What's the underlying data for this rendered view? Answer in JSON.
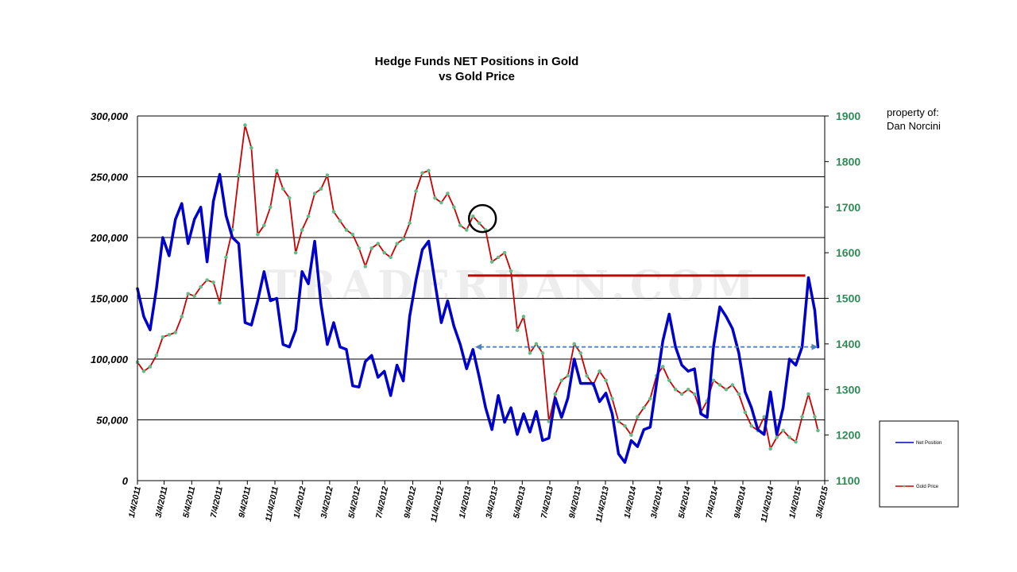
{
  "chart_data": {
    "type": "line",
    "title": "Hedge Funds NET Positions in Gold",
    "subtitle": "vs Gold Price",
    "credit": [
      "property of:",
      "Dan Norcini"
    ],
    "watermark": "TRADERDAN.COM",
    "ylim_left": [
      0,
      300000
    ],
    "ylim_right": [
      1100,
      1900
    ],
    "left_ticks": [
      "0",
      "50,000",
      "100,000",
      "150,000",
      "200,000",
      "250,000",
      "300,000"
    ],
    "right_ticks": [
      "1100",
      "1200",
      "1300",
      "1400",
      "1500",
      "1600",
      "1700",
      "1800",
      "1900"
    ],
    "xlim": [
      "1/4/2011",
      "3/4/2015"
    ],
    "x_ticks": [
      "1/4/2011",
      "3/4/2011",
      "5/4/2011",
      "7/4/2011",
      "9/4/2011",
      "11/4/2011",
      "1/4/2012",
      "3/4/2012",
      "5/4/2012",
      "7/4/2012",
      "9/4/2012",
      "11/4/2012",
      "1/4/2013",
      "3/4/2013",
      "5/4/2013",
      "7/4/2013",
      "9/4/2013",
      "11/4/2013",
      "1/4/2014",
      "3/4/2014",
      "5/4/2014",
      "7/4/2014",
      "9/4/2014",
      "11/4/2014",
      "1/4/2015",
      "3/4/2015"
    ],
    "grid": true,
    "legend_position": "right",
    "series": [
      {
        "name": "Net Position",
        "axis": "left",
        "color": "#0000cc",
        "points": [
          [
            "1/4/2011",
            158000
          ],
          [
            "1/18/2011",
            135000
          ],
          [
            "2/1/2011",
            124000
          ],
          [
            "2/15/2011",
            158000
          ],
          [
            "3/1/2011",
            200000
          ],
          [
            "3/15/2011",
            185000
          ],
          [
            "3/29/2011",
            215000
          ],
          [
            "4/12/2011",
            228000
          ],
          [
            "4/26/2011",
            195000
          ],
          [
            "5/10/2011",
            215000
          ],
          [
            "5/24/2011",
            225000
          ],
          [
            "6/7/2011",
            180000
          ],
          [
            "6/21/2011",
            230000
          ],
          [
            "7/5/2011",
            252000
          ],
          [
            "7/19/2011",
            218000
          ],
          [
            "8/2/2011",
            200000
          ],
          [
            "8/16/2011",
            195000
          ],
          [
            "8/30/2011",
            130000
          ],
          [
            "9/13/2011",
            128000
          ],
          [
            "9/27/2011",
            148000
          ],
          [
            "10/11/2011",
            172000
          ],
          [
            "10/25/2011",
            148000
          ],
          [
            "11/8/2011",
            150000
          ],
          [
            "11/22/2011",
            112000
          ],
          [
            "12/6/2011",
            110000
          ],
          [
            "12/20/2011",
            124000
          ],
          [
            "1/3/2012",
            172000
          ],
          [
            "1/17/2012",
            162000
          ],
          [
            "1/31/2012",
            197000
          ],
          [
            "2/14/2012",
            145000
          ],
          [
            "2/28/2012",
            112000
          ],
          [
            "3/13/2012",
            130000
          ],
          [
            "3/27/2012",
            110000
          ],
          [
            "4/10/2012",
            108000
          ],
          [
            "4/24/2012",
            78000
          ],
          [
            "5/8/2012",
            77000
          ],
          [
            "5/22/2012",
            98000
          ],
          [
            "6/5/2012",
            103000
          ],
          [
            "6/19/2012",
            85000
          ],
          [
            "7/3/2012",
            90000
          ],
          [
            "7/17/2012",
            70000
          ],
          [
            "7/31/2012",
            95000
          ],
          [
            "8/14/2012",
            82000
          ],
          [
            "8/28/2012",
            135000
          ],
          [
            "9/11/2012",
            165000
          ],
          [
            "9/25/2012",
            190000
          ],
          [
            "10/9/2012",
            197000
          ],
          [
            "10/23/2012",
            163000
          ],
          [
            "11/6/2012",
            130000
          ],
          [
            "11/20/2012",
            148000
          ],
          [
            "12/4/2012",
            127000
          ],
          [
            "12/18/2012",
            112000
          ],
          [
            "1/1/2013",
            92000
          ],
          [
            "1/15/2013",
            108000
          ],
          [
            "1/29/2013",
            85000
          ],
          [
            "2/12/2013",
            60000
          ],
          [
            "2/26/2013",
            42000
          ],
          [
            "3/12/2013",
            70000
          ],
          [
            "3/26/2013",
            48000
          ],
          [
            "4/9/2013",
            60000
          ],
          [
            "4/23/2013",
            38000
          ],
          [
            "5/7/2013",
            55000
          ],
          [
            "5/21/2013",
            40000
          ],
          [
            "6/4/2013",
            57000
          ],
          [
            "6/18/2013",
            33000
          ],
          [
            "7/2/2013",
            35000
          ],
          [
            "7/16/2013",
            68000
          ],
          [
            "7/30/2013",
            52000
          ],
          [
            "8/13/2013",
            68000
          ],
          [
            "8/27/2013",
            100000
          ],
          [
            "9/10/2013",
            80000
          ],
          [
            "9/24/2013",
            80000
          ],
          [
            "10/8/2013",
            80000
          ],
          [
            "10/22/2013",
            65000
          ],
          [
            "11/5/2013",
            72000
          ],
          [
            "11/19/2013",
            55000
          ],
          [
            "12/3/2013",
            22000
          ],
          [
            "12/17/2013",
            15000
          ],
          [
            "12/31/2013",
            33000
          ],
          [
            "1/14/2014",
            28000
          ],
          [
            "1/28/2014",
            42000
          ],
          [
            "2/11/2014",
            44000
          ],
          [
            "2/25/2014",
            80000
          ],
          [
            "3/11/2014",
            115000
          ],
          [
            "3/25/2014",
            137000
          ],
          [
            "4/8/2014",
            110000
          ],
          [
            "4/22/2014",
            95000
          ],
          [
            "5/6/2014",
            90000
          ],
          [
            "5/20/2014",
            92000
          ],
          [
            "6/3/2014",
            55000
          ],
          [
            "6/17/2014",
            52000
          ],
          [
            "7/1/2014",
            110000
          ],
          [
            "7/15/2014",
            143000
          ],
          [
            "7/29/2014",
            135000
          ],
          [
            "8/12/2014",
            125000
          ],
          [
            "8/26/2014",
            105000
          ],
          [
            "9/9/2014",
            73000
          ],
          [
            "9/23/2014",
            60000
          ],
          [
            "10/7/2014",
            42000
          ],
          [
            "10/21/2014",
            38000
          ],
          [
            "11/4/2014",
            73000
          ],
          [
            "11/18/2014",
            38000
          ],
          [
            "12/2/2014",
            60000
          ],
          [
            "12/16/2014",
            100000
          ],
          [
            "12/30/2014",
            95000
          ],
          [
            "1/13/2015",
            110000
          ],
          [
            "1/27/2015",
            167000
          ],
          [
            "2/10/2015",
            140000
          ],
          [
            "2/17/2015",
            110000
          ]
        ]
      },
      {
        "name": "Gold Price",
        "axis": "right",
        "color": "#cc0000",
        "marker_color": "#66bb88",
        "points": [
          [
            "1/4/2011",
            1360
          ],
          [
            "1/18/2011",
            1340
          ],
          [
            "2/1/2011",
            1350
          ],
          [
            "2/15/2011",
            1375
          ],
          [
            "3/1/2011",
            1415
          ],
          [
            "3/15/2011",
            1420
          ],
          [
            "3/29/2011",
            1425
          ],
          [
            "4/12/2011",
            1460
          ],
          [
            "4/26/2011",
            1510
          ],
          [
            "5/10/2011",
            1505
          ],
          [
            "5/24/2011",
            1525
          ],
          [
            "6/7/2011",
            1540
          ],
          [
            "6/21/2011",
            1535
          ],
          [
            "7/5/2011",
            1490
          ],
          [
            "7/19/2011",
            1590
          ],
          [
            "8/2/2011",
            1650
          ],
          [
            "8/16/2011",
            1770
          ],
          [
            "8/30/2011",
            1880
          ],
          [
            "9/13/2011",
            1830
          ],
          [
            "9/27/2011",
            1640
          ],
          [
            "10/11/2011",
            1660
          ],
          [
            "10/25/2011",
            1700
          ],
          [
            "11/8/2011",
            1780
          ],
          [
            "11/22/2011",
            1740
          ],
          [
            "12/6/2011",
            1720
          ],
          [
            "12/20/2011",
            1600
          ],
          [
            "1/3/2012",
            1650
          ],
          [
            "1/17/2012",
            1680
          ],
          [
            "1/31/2012",
            1730
          ],
          [
            "2/14/2012",
            1740
          ],
          [
            "2/28/2012",
            1770
          ],
          [
            "3/13/2012",
            1690
          ],
          [
            "3/27/2012",
            1670
          ],
          [
            "4/10/2012",
            1650
          ],
          [
            "4/24/2012",
            1640
          ],
          [
            "5/8/2012",
            1610
          ],
          [
            "5/22/2012",
            1570
          ],
          [
            "6/5/2012",
            1610
          ],
          [
            "6/19/2012",
            1620
          ],
          [
            "7/3/2012",
            1600
          ],
          [
            "7/17/2012",
            1590
          ],
          [
            "7/31/2012",
            1620
          ],
          [
            "8/14/2012",
            1630
          ],
          [
            "8/28/2012",
            1665
          ],
          [
            "9/11/2012",
            1735
          ],
          [
            "9/25/2012",
            1775
          ],
          [
            "10/9/2012",
            1780
          ],
          [
            "10/23/2012",
            1720
          ],
          [
            "11/6/2012",
            1710
          ],
          [
            "11/20/2012",
            1730
          ],
          [
            "12/4/2012",
            1700
          ],
          [
            "12/18/2012",
            1660
          ],
          [
            "1/1/2013",
            1650
          ],
          [
            "1/15/2013",
            1680
          ],
          [
            "1/29/2013",
            1665
          ],
          [
            "2/12/2013",
            1650
          ],
          [
            "2/26/2013",
            1580
          ],
          [
            "3/12/2013",
            1590
          ],
          [
            "3/26/2013",
            1600
          ],
          [
            "4/9/2013",
            1560
          ],
          [
            "4/23/2013",
            1430
          ],
          [
            "5/7/2013",
            1460
          ],
          [
            "5/21/2013",
            1380
          ],
          [
            "6/4/2013",
            1400
          ],
          [
            "6/18/2013",
            1380
          ],
          [
            "7/2/2013",
            1230
          ],
          [
            "7/16/2013",
            1290
          ],
          [
            "7/30/2013",
            1320
          ],
          [
            "8/13/2013",
            1330
          ],
          [
            "8/27/2013",
            1400
          ],
          [
            "9/10/2013",
            1380
          ],
          [
            "9/24/2013",
            1330
          ],
          [
            "10/8/2013",
            1310
          ],
          [
            "10/22/2013",
            1340
          ],
          [
            "11/5/2013",
            1320
          ],
          [
            "11/19/2013",
            1280
          ],
          [
            "12/3/2013",
            1230
          ],
          [
            "12/17/2013",
            1220
          ],
          [
            "12/31/2013",
            1200
          ],
          [
            "1/14/2014",
            1240
          ],
          [
            "1/28/2014",
            1260
          ],
          [
            "2/11/2014",
            1280
          ],
          [
            "2/25/2014",
            1330
          ],
          [
            "3/11/2014",
            1350
          ],
          [
            "3/25/2014",
            1320
          ],
          [
            "4/8/2014",
            1300
          ],
          [
            "4/22/2014",
            1290
          ],
          [
            "5/6/2014",
            1300
          ],
          [
            "5/20/2014",
            1290
          ],
          [
            "6/3/2014",
            1250
          ],
          [
            "6/17/2014",
            1275
          ],
          [
            "7/1/2014",
            1320
          ],
          [
            "7/15/2014",
            1310
          ],
          [
            "7/29/2014",
            1300
          ],
          [
            "8/12/2014",
            1310
          ],
          [
            "8/26/2014",
            1290
          ],
          [
            "9/9/2014",
            1250
          ],
          [
            "9/23/2014",
            1220
          ],
          [
            "10/7/2014",
            1210
          ],
          [
            "10/21/2014",
            1240
          ],
          [
            "11/4/2014",
            1170
          ],
          [
            "11/18/2014",
            1195
          ],
          [
            "12/2/2014",
            1210
          ],
          [
            "12/16/2014",
            1195
          ],
          [
            "12/30/2014",
            1185
          ],
          [
            "1/13/2015",
            1240
          ],
          [
            "1/27/2015",
            1290
          ],
          [
            "2/10/2015",
            1240
          ],
          [
            "2/17/2015",
            1210
          ]
        ]
      }
    ],
    "annotations": {
      "circle_at": [
        "2/5/2013",
        1675
      ],
      "red_level": {
        "value": 1550,
        "x_start": "1/4/2013",
        "x_end": "1/20/2015",
        "color": "#cc0000"
      },
      "blue_arrow": {
        "value": 110000,
        "x_start": "1/20/2013",
        "x_end": "2/17/2015",
        "color": "#4f81bd"
      }
    }
  }
}
